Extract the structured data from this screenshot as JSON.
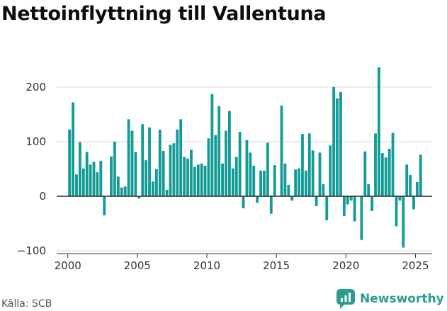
{
  "header": {
    "title": "Nettoinflyttning till Vallentuna"
  },
  "footer": {
    "source": "Källa: SCB",
    "brand": "Newsworthy",
    "brand_icon": "newsworthy-logo-icon"
  },
  "colors": {
    "bar": "#139b95",
    "grid": "#d9d9d9",
    "zero_line": "#222222",
    "brand": "#2a9d8f"
  },
  "chart_data": {
    "type": "bar",
    "title": "Nettoinflyttning till Vallentuna",
    "xlabel": "",
    "ylabel": "",
    "ylim": [
      -105,
      240
    ],
    "xlim": [
      1999.2,
      2026.2
    ],
    "yticks": [
      -100,
      0,
      100,
      200
    ],
    "ytick_labels": [
      "−100",
      "0",
      "100",
      "200"
    ],
    "xticks": [
      2000,
      2005,
      2010,
      2015,
      2020,
      2025
    ],
    "grid": true,
    "x_unit": "quarter",
    "x": [
      "2000Q1",
      "2000Q2",
      "2000Q3",
      "2000Q4",
      "2001Q1",
      "2001Q2",
      "2001Q3",
      "2001Q4",
      "2002Q1",
      "2002Q2",
      "2002Q3",
      "2002Q4",
      "2003Q1",
      "2003Q2",
      "2003Q3",
      "2003Q4",
      "2004Q1",
      "2004Q2",
      "2004Q3",
      "2004Q4",
      "2005Q1",
      "2005Q2",
      "2005Q3",
      "2005Q4",
      "2006Q1",
      "2006Q2",
      "2006Q3",
      "2006Q4",
      "2007Q1",
      "2007Q2",
      "2007Q3",
      "2007Q4",
      "2008Q1",
      "2008Q2",
      "2008Q3",
      "2008Q4",
      "2009Q1",
      "2009Q2",
      "2009Q3",
      "2009Q4",
      "2010Q1",
      "2010Q2",
      "2010Q3",
      "2010Q4",
      "2011Q1",
      "2011Q2",
      "2011Q3",
      "2011Q4",
      "2012Q1",
      "2012Q2",
      "2012Q3",
      "2012Q4",
      "2013Q1",
      "2013Q2",
      "2013Q3",
      "2013Q4",
      "2014Q1",
      "2014Q2",
      "2014Q3",
      "2014Q4",
      "2015Q1",
      "2015Q2",
      "2015Q3",
      "2015Q4",
      "2016Q1",
      "2016Q2",
      "2016Q3",
      "2016Q4",
      "2017Q1",
      "2017Q2",
      "2017Q3",
      "2017Q4",
      "2018Q1",
      "2018Q2",
      "2018Q3",
      "2018Q4",
      "2019Q1",
      "2019Q2",
      "2019Q3",
      "2019Q4",
      "2020Q1",
      "2020Q2",
      "2020Q3",
      "2020Q4",
      "2021Q1",
      "2021Q2",
      "2021Q3",
      "2021Q4",
      "2022Q1",
      "2022Q2",
      "2022Q3",
      "2022Q4",
      "2023Q1",
      "2023Q2",
      "2023Q3",
      "2023Q4",
      "2024Q1",
      "2024Q2",
      "2024Q3",
      "2024Q4",
      "2025Q1",
      "2025Q2"
    ],
    "values": [
      122,
      172,
      40,
      99,
      51,
      81,
      58,
      63,
      44,
      65,
      -35,
      0,
      73,
      100,
      36,
      16,
      18,
      141,
      120,
      81,
      -4,
      132,
      66,
      126,
      27,
      50,
      122,
      83,
      12,
      94,
      97,
      122,
      141,
      72,
      69,
      85,
      54,
      58,
      60,
      56,
      106,
      187,
      112,
      165,
      60,
      120,
      156,
      51,
      72,
      118,
      -22,
      103,
      80,
      56,
      -12,
      47,
      47,
      98,
      -32,
      57,
      0,
      166,
      60,
      21,
      -8,
      49,
      51,
      114,
      47,
      115,
      84,
      -18,
      80,
      22,
      -44,
      93,
      200,
      179,
      191,
      -36,
      -15,
      -8,
      -46,
      0,
      -80,
      82,
      22,
      -27,
      115,
      236,
      79,
      71,
      87,
      116,
      -55,
      -8,
      -94,
      58,
      39,
      -24,
      26,
      76
    ]
  }
}
